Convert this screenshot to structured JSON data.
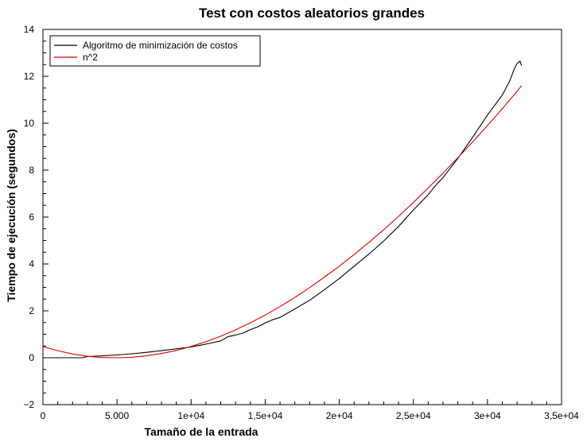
{
  "chart_data": {
    "type": "line",
    "title": "Test con costos aleatorios grandes",
    "xlabel": "Tamaño de la entrada",
    "ylabel": "Tiempo de ejecución (segundos)",
    "xlim": [
      0,
      35000
    ],
    "ylim": [
      -2,
      14
    ],
    "x_ticks": [
      {
        "value": 0,
        "label": "0"
      },
      {
        "value": 5000,
        "label": "5.000"
      },
      {
        "value": 10000,
        "label": "1e+04"
      },
      {
        "value": 15000,
        "label": "1,5e+04"
      },
      {
        "value": 20000,
        "label": "2e+04"
      },
      {
        "value": 25000,
        "label": "2,5e+04"
      },
      {
        "value": 30000,
        "label": "3e+04"
      },
      {
        "value": 35000,
        "label": "3,5e+04"
      }
    ],
    "y_ticks": [
      {
        "value": -2,
        "label": "−2"
      },
      {
        "value": 0,
        "label": "0"
      },
      {
        "value": 2,
        "label": "2"
      },
      {
        "value": 4,
        "label": "4"
      },
      {
        "value": 6,
        "label": "6"
      },
      {
        "value": 8,
        "label": "8"
      },
      {
        "value": 10,
        "label": "10"
      },
      {
        "value": 12,
        "label": "12"
      },
      {
        "value": 14,
        "label": "14"
      }
    ],
    "grid": false,
    "legend_position": "top-left",
    "series": [
      {
        "name": "Algoritmo de minimización de costos",
        "color": "#000000",
        "x": [
          0,
          1000,
          2000,
          2700,
          3000,
          4000,
          5000,
          6000,
          7000,
          8000,
          9000,
          10000,
          11000,
          12000,
          12500,
          13000,
          13500,
          14000,
          14500,
          15000,
          15500,
          16000,
          17000,
          18000,
          19000,
          20000,
          21000,
          22000,
          23000,
          24000,
          25000,
          26000,
          26500,
          27000,
          28000,
          29000,
          30000,
          31000,
          31500,
          31800,
          32000,
          32200,
          32300
        ],
        "y": [
          0.0,
          0.0,
          0.0,
          0.0,
          0.05,
          0.08,
          0.12,
          0.17,
          0.23,
          0.3,
          0.38,
          0.46,
          0.58,
          0.72,
          0.9,
          0.97,
          1.05,
          1.2,
          1.32,
          1.48,
          1.62,
          1.72,
          2.08,
          2.45,
          2.9,
          3.38,
          3.9,
          4.42,
          4.98,
          5.6,
          6.3,
          6.95,
          7.35,
          7.68,
          8.5,
          9.4,
          10.35,
          11.2,
          11.8,
          12.3,
          12.55,
          12.65,
          12.45
        ]
      },
      {
        "name": "n^2",
        "color": "#dd0000",
        "x": [
          0,
          1000,
          2000,
          3000,
          4000,
          5000,
          6000,
          7000,
          8000,
          9000,
          10000,
          11000,
          12000,
          13000,
          14000,
          15000,
          16000,
          17000,
          18000,
          19000,
          20000,
          21000,
          22000,
          23000,
          24000,
          25000,
          26000,
          27000,
          28000,
          29000,
          30000,
          31000,
          32000,
          32300
        ],
        "y": [
          0.47,
          0.3,
          0.16,
          0.06,
          0.01,
          0.0,
          0.02,
          0.08,
          0.18,
          0.31,
          0.48,
          0.68,
          0.92,
          1.19,
          1.49,
          1.82,
          2.18,
          2.57,
          2.99,
          3.44,
          3.9,
          4.4,
          4.92,
          5.46,
          6.03,
          6.62,
          7.24,
          7.87,
          8.53,
          9.2,
          9.9,
          10.62,
          11.36,
          11.6
        ]
      }
    ]
  }
}
